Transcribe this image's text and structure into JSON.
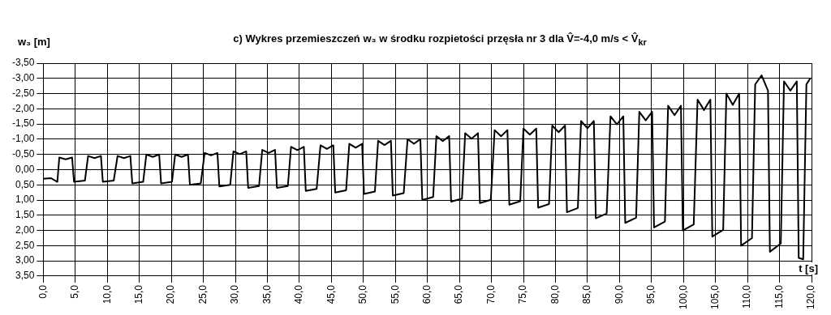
{
  "chart_data": {
    "type": "line",
    "title": "c)  Wykres przemieszczeń w₃ w środku rozpietości przęsła nr 3 dla V̂=-4,0 m/s < V̂$_{kr}$",
    "ylabel": "w₃ [m]",
    "xlabel": "t [s]",
    "series": [
      {
        "color": "#000000",
        "x": [
          0,
          1.2,
          2.2,
          2.5,
          3.5,
          4.5,
          4.8,
          6.5,
          7.0,
          8.0,
          9.0,
          9.3,
          11.0,
          11.6,
          12.6,
          13.6,
          13.9,
          15.6,
          16.1,
          17.1,
          18.1,
          18.4,
          20.1,
          20.6,
          21.6,
          22.6,
          22.9,
          24.6,
          25.2,
          26.2,
          27.2,
          27.5,
          29.2,
          29.7,
          30.7,
          31.7,
          32.0,
          33.7,
          34.2,
          35.2,
          36.2,
          36.5,
          38.2,
          38.7,
          39.7,
          40.7,
          41.0,
          42.7,
          43.3,
          44.3,
          45.3,
          45.6,
          47.3,
          47.8,
          48.8,
          49.8,
          50.1,
          51.8,
          52.3,
          53.3,
          54.3,
          54.6,
          56.3,
          56.9,
          57.9,
          58.9,
          59.2,
          60.9,
          61.4,
          62.4,
          63.4,
          63.7,
          65.4,
          65.9,
          66.9,
          67.9,
          68.2,
          69.9,
          70.5,
          71.5,
          72.5,
          72.8,
          74.5,
          75.0,
          76.0,
          77.0,
          77.3,
          79.0,
          79.5,
          80.5,
          81.5,
          81.8,
          83.5,
          84.0,
          85.0,
          86.0,
          86.3,
          88.0,
          88.6,
          89.6,
          90.6,
          90.9,
          92.6,
          93.1,
          94.1,
          95.1,
          95.4,
          97.1,
          97.6,
          98.6,
          99.6,
          99.9,
          101.6,
          102.2,
          103.2,
          104.2,
          104.5,
          106.2,
          106.7,
          107.7,
          108.7,
          109.0,
          110.7,
          111.2,
          112.2,
          113.2,
          113.5,
          115.2,
          115.7,
          116.7,
          117.7,
          118.0,
          118.7,
          119.2,
          119.8
        ],
        "values": [
          0.3,
          0.28,
          0.4,
          -0.4,
          -0.34,
          -0.4,
          0.4,
          0.36,
          -0.45,
          -0.38,
          -0.45,
          0.4,
          0.36,
          -0.45,
          -0.38,
          -0.45,
          0.45,
          0.4,
          -0.5,
          -0.42,
          -0.5,
          0.45,
          0.4,
          -0.5,
          -0.42,
          -0.5,
          0.5,
          0.45,
          -0.55,
          -0.47,
          -0.55,
          0.55,
          0.5,
          -0.6,
          -0.51,
          -0.6,
          0.6,
          0.54,
          -0.65,
          -0.55,
          -0.65,
          0.6,
          0.54,
          -0.75,
          -0.64,
          -0.75,
          0.7,
          0.63,
          -0.8,
          -0.68,
          -0.8,
          0.75,
          0.68,
          -0.85,
          -0.72,
          -0.85,
          0.8,
          0.72,
          -0.95,
          -0.81,
          -0.95,
          0.85,
          0.77,
          -1.0,
          -0.85,
          -1.0,
          1.0,
          0.9,
          -1.1,
          -0.94,
          -1.1,
          1.05,
          0.95,
          -1.2,
          -1.02,
          -1.2,
          1.1,
          0.99,
          -1.3,
          -1.1,
          -1.3,
          1.15,
          1.04,
          -1.35,
          -1.15,
          -1.35,
          1.25,
          1.13,
          -1.45,
          -1.23,
          -1.45,
          1.4,
          1.26,
          -1.6,
          -1.36,
          -1.6,
          1.6,
          1.44,
          -1.75,
          -1.49,
          -1.75,
          1.75,
          1.58,
          -1.9,
          -1.62,
          -1.9,
          1.9,
          1.71,
          -2.1,
          -1.79,
          -2.1,
          2.0,
          1.8,
          -2.3,
          -1.96,
          -2.3,
          2.2,
          1.98,
          -2.5,
          -2.13,
          -2.5,
          2.5,
          2.25,
          -2.8,
          -3.1,
          -2.6,
          2.7,
          2.43,
          -2.9,
          -2.6,
          -2.9,
          2.9,
          2.95,
          -2.8,
          -3.0
        ]
      }
    ],
    "xlim": [
      0,
      120
    ],
    "xticks": [
      {
        "value": 0,
        "label": "0,0"
      },
      {
        "value": 5,
        "label": "5,0"
      },
      {
        "value": 10,
        "label": "10,0"
      },
      {
        "value": 15,
        "label": "15,0"
      },
      {
        "value": 20,
        "label": "20,0"
      },
      {
        "value": 25,
        "label": "25,0"
      },
      {
        "value": 30,
        "label": "30,0"
      },
      {
        "value": 35,
        "label": "35,0"
      },
      {
        "value": 40,
        "label": "40,0"
      },
      {
        "value": 45,
        "label": "45,0"
      },
      {
        "value": 50,
        "label": "50,0"
      },
      {
        "value": 55,
        "label": "55,0"
      },
      {
        "value": 60,
        "label": "60,0"
      },
      {
        "value": 65,
        "label": "65,0"
      },
      {
        "value": 70,
        "label": "70,0"
      },
      {
        "value": 75,
        "label": "75,0"
      },
      {
        "value": 80,
        "label": "80,0"
      },
      {
        "value": 85,
        "label": "85,0"
      },
      {
        "value": 90,
        "label": "90,0"
      },
      {
        "value": 95,
        "label": "95,0"
      },
      {
        "value": 100,
        "label": "100,0"
      },
      {
        "value": 105,
        "label": "105,0"
      },
      {
        "value": 110,
        "label": "110,0"
      },
      {
        "value": 115,
        "label": "115,0"
      },
      {
        "value": 120,
        "label": "120,0"
      }
    ],
    "ylim": [
      3.5,
      -3.5
    ],
    "yticks": [
      {
        "value": -3.5,
        "label": "-3,50"
      },
      {
        "value": -3,
        "label": "-3,00"
      },
      {
        "value": -2.5,
        "label": "-2,50"
      },
      {
        "value": -2,
        "label": "-2,00"
      },
      {
        "value": -1.5,
        "label": "-1,50"
      },
      {
        "value": -1,
        "label": "-1,00"
      },
      {
        "value": -0.5,
        "label": "-0,50"
      },
      {
        "value": 0,
        "label": "0,00"
      },
      {
        "value": 0.5,
        "label": "0,50"
      },
      {
        "value": 1,
        "label": "1,00"
      },
      {
        "value": 1.5,
        "label": "1,50"
      },
      {
        "value": 2,
        "label": "2,00"
      },
      {
        "value": 2.5,
        "label": "2,50"
      },
      {
        "value": 3,
        "label": "3,00"
      },
      {
        "value": 3.5,
        "label": "3,50"
      }
    ],
    "grid": true,
    "legend": false,
    "marker": "none",
    "line_style": "solid"
  }
}
